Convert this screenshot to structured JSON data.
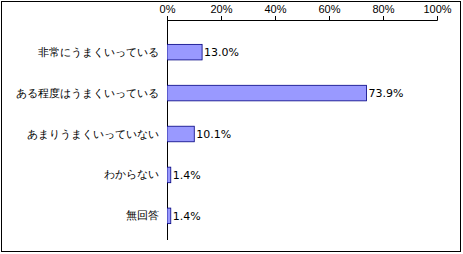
{
  "chart_data": {
    "type": "bar",
    "orientation": "horizontal",
    "categories": [
      "非常にうまくいっている",
      "ある程度はうまくいっている",
      "あまりうまくいっていない",
      "わからない",
      "無回答"
    ],
    "values": [
      13.0,
      73.9,
      10.1,
      1.4,
      1.4
    ],
    "value_labels": [
      "13.0%",
      "73.9%",
      "10.1%",
      "1.4%",
      "1.4%"
    ],
    "color": "#9999ff",
    "xlim": [
      0,
      100
    ],
    "xticks": [
      {
        "value": 0,
        "label": "0%"
      },
      {
        "value": 20,
        "label": "20%"
      },
      {
        "value": 40,
        "label": "40%"
      },
      {
        "value": 60,
        "label": "60%"
      },
      {
        "value": 80,
        "label": "80%"
      },
      {
        "value": 100,
        "label": "100%"
      }
    ],
    "data_labels": true,
    "grid": false
  }
}
